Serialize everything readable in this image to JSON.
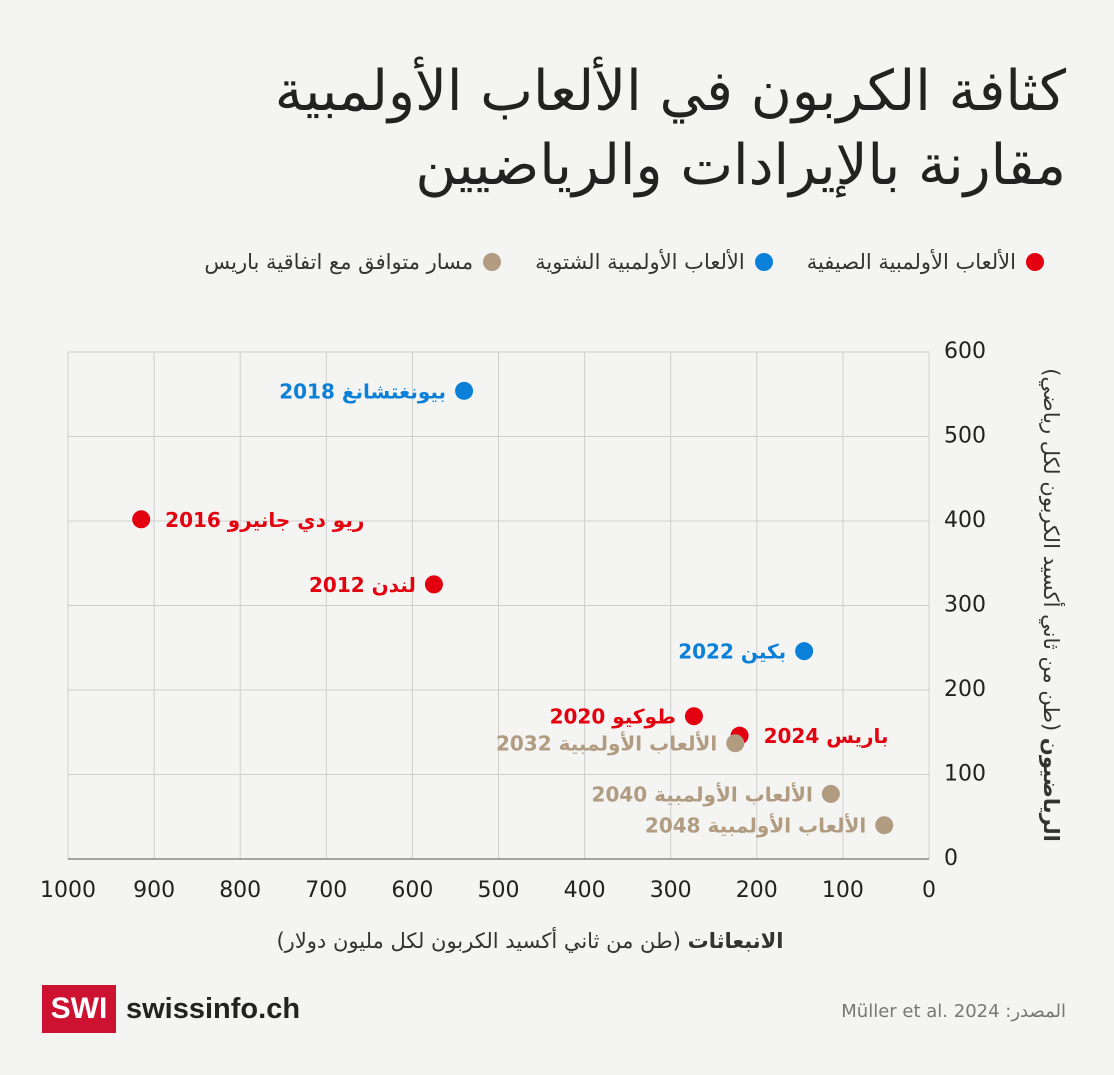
{
  "chart_data": {
    "type": "scatter",
    "title": "كثافة الكربون في الألعاب الأولمبية",
    "subtitle": "مقارنة بالإيرادات والرياضيين",
    "xlabel": {
      "bold": "الانبعاثات",
      "rest": "(طن من ثاني أكسيد الكربون لكل مليون دولار)"
    },
    "ylabel": {
      "bold": "الرياضيون",
      "rest": "(طن من ثاني أكسيد الكربون لكل رياضي)"
    },
    "xlim": [
      1000,
      0
    ],
    "xticks": [
      1000,
      900,
      800,
      700,
      600,
      500,
      400,
      300,
      200,
      100,
      0
    ],
    "ylim": [
      0,
      600
    ],
    "yticks": [
      0,
      100,
      200,
      300,
      400,
      500,
      600
    ],
    "grid": true,
    "series": [
      {
        "name": "الألعاب الأولمبية الصيفية",
        "color": "#e3000f",
        "x": [
          575,
          915,
          273,
          220
        ],
        "values": [
          325,
          402,
          169,
          146
        ],
        "labels": [
          "لندن 2012",
          "ريو دي جانيرو 2016",
          "طوكيو 2020",
          "باريس 2024"
        ]
      },
      {
        "name": "الألعاب الأولمبية الشتوية",
        "color": "#0b80d9",
        "x": [
          540,
          145
        ],
        "values": [
          554,
          246
        ],
        "labels": [
          "بيونغتشانغ 2018",
          "بكين 2022"
        ]
      },
      {
        "name": "مسار متوافق مع اتفاقية باريس",
        "color": "#b19b81",
        "x": [
          225,
          114,
          52
        ],
        "values": [
          137,
          77,
          40
        ],
        "labels": [
          "الألعاب الأولمبية 2032",
          "الألعاب الأولمبية 2040",
          "الألعاب الأولمبية 2048"
        ]
      }
    ],
    "source": "المصدر: Müller et al. 2024",
    "logo": {
      "mark": "SWI",
      "name": "swissinfo.ch"
    }
  }
}
